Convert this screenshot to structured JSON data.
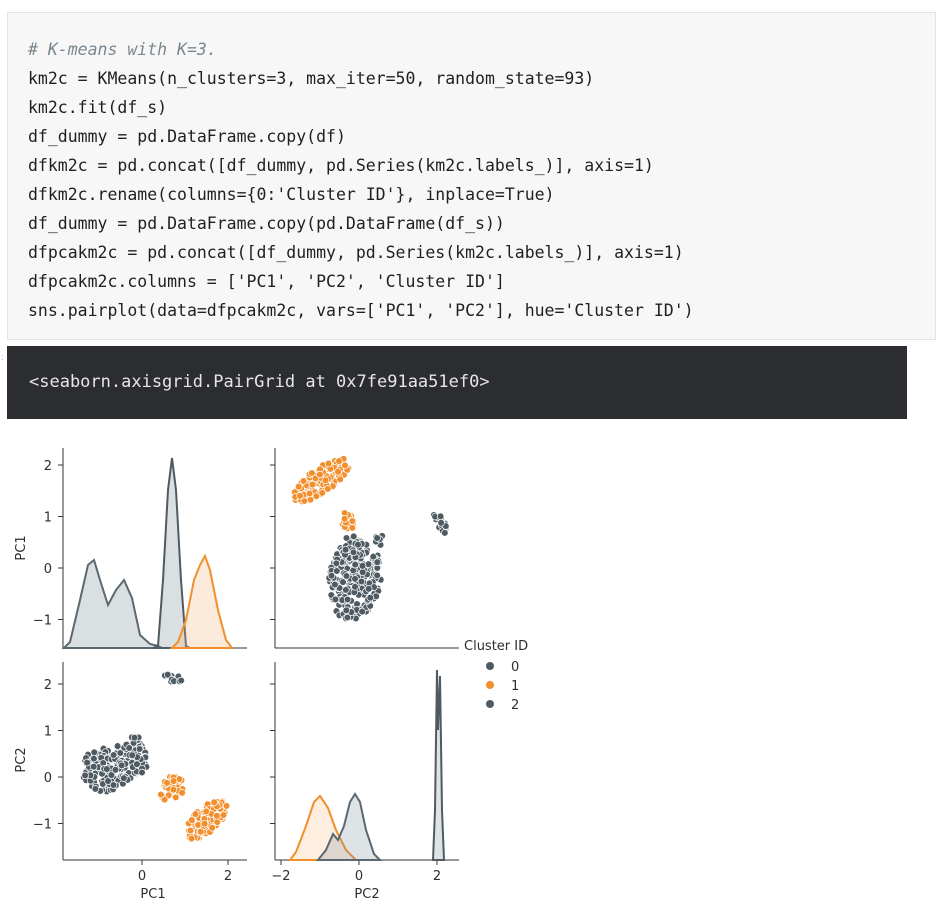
{
  "code": {
    "lines": [
      {
        "text": "# K-means with K=3.",
        "kind": "comment"
      },
      {
        "text": "km2c = KMeans(n_clusters=3, max_iter=50, random_state=93)",
        "kind": "code"
      },
      {
        "text": "km2c.fit(df_s)",
        "kind": "code"
      },
      {
        "text": "df_dummy = pd.DataFrame.copy(df)",
        "kind": "code"
      },
      {
        "text": "dfkm2c = pd.concat([df_dummy, pd.Series(km2c.labels_)], axis=1)",
        "kind": "code"
      },
      {
        "text": "dfkm2c.rename(columns={0:'Cluster ID'}, inplace=True)",
        "kind": "code"
      },
      {
        "text": "df_dummy = pd.DataFrame.copy(pd.DataFrame(df_s))",
        "kind": "code"
      },
      {
        "text": "dfpcakm2c = pd.concat([df_dummy, pd.Series(km2c.labels_)], axis=1)",
        "kind": "code"
      },
      {
        "text": "dfpcakm2c.columns = ['PC1', 'PC2', 'Cluster ID']",
        "kind": "code"
      },
      {
        "text": "sns.pairplot(data=dfpcakm2c, vars=['PC1', 'PC2'], hue='Cluster ID')",
        "kind": "code"
      }
    ]
  },
  "output": {
    "text": "<seaborn.axisgrid.PairGrid at 0x7fe91aa51ef0>"
  },
  "chart_data": {
    "type": "scatter",
    "variables": [
      "PC1",
      "PC2"
    ],
    "axis_labels": {
      "row0_y": "PC1",
      "row1_y": "PC2",
      "col0_x": "PC1",
      "col1_x": "PC2"
    },
    "ticks": {
      "pc1_y": [
        "2",
        "1",
        "0",
        "−1"
      ],
      "pc2_y": [
        "2",
        "1",
        "0",
        "−1"
      ],
      "pc1_x": [
        "0",
        "2"
      ],
      "pc2_x": [
        "−2",
        "0",
        "2"
      ]
    },
    "legend": {
      "title": "Cluster ID",
      "placement": "right",
      "entries": [
        {
          "label": "0",
          "color": "#4f5b62"
        },
        {
          "label": "1",
          "color": "#f28e2b"
        },
        {
          "label": "2",
          "color": "#4f5b62"
        }
      ]
    },
    "clusters": [
      {
        "id": "0",
        "color": "#4f5b62",
        "pc1_range": [
          -1.55,
          0.25
        ],
        "pc2_range": [
          -0.95,
          0.6
        ]
      },
      {
        "id": "1",
        "color": "#f28e2b",
        "pc1_range": [
          0.35,
          2.05
        ],
        "pc2_range": [
          -1.45,
          0.0
        ]
      },
      {
        "id": "2",
        "color": "#4f5b62",
        "pc1_range": [
          0.55,
          1.05
        ],
        "pc2_range": [
          1.95,
          2.25
        ]
      }
    ],
    "grid": false
  }
}
